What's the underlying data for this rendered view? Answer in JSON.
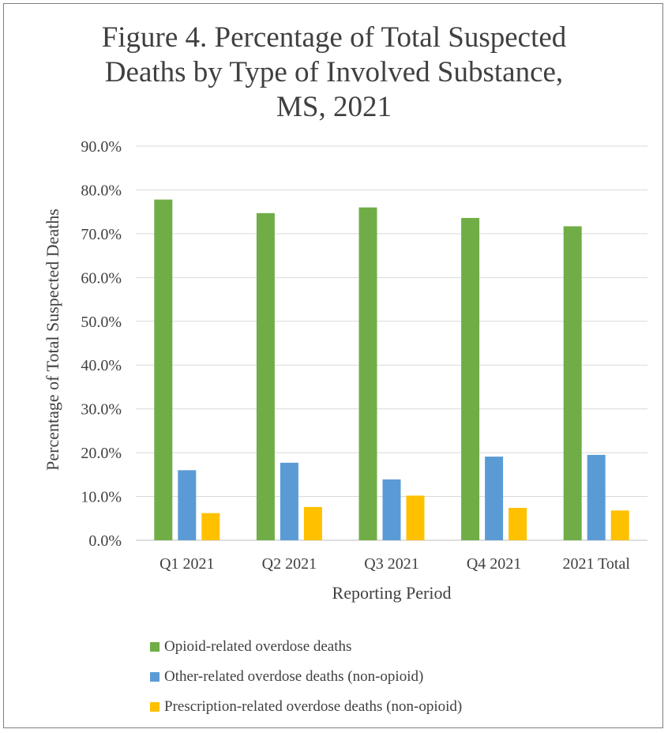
{
  "chart_data": {
    "type": "bar",
    "title_lines": [
      "Figure 4. Percentage of Total Suspected",
      "Deaths by Type of Involved Substance,",
      "MS, 2021"
    ],
    "xlabel": "Reporting Period",
    "ylabel": "Percentage of Total Suspected Deaths",
    "categories": [
      "Q1 2021",
      "Q2 2021",
      "Q3 2021",
      "Q4 2021",
      "2021 Total"
    ],
    "yticks": [
      "0.0%",
      "10.0%",
      "20.0%",
      "30.0%",
      "40.0%",
      "50.0%",
      "60.0%",
      "70.0%",
      "80.0%",
      "90.0%"
    ],
    "ylim": [
      0,
      90
    ],
    "grid": true,
    "legend_position": "bottom",
    "series": [
      {
        "name": "Opioid-related overdose deaths",
        "color": "#70ad47",
        "values": [
          77.8,
          74.7,
          76.0,
          73.6,
          71.7
        ]
      },
      {
        "name": "Other-related overdose deaths (non-opioid)",
        "color": "#5b9bd5",
        "values": [
          16.0,
          17.7,
          13.9,
          19.1,
          19.5
        ]
      },
      {
        "name": "Prescription-related overdose deaths (non-opioid)",
        "color": "#ffc000",
        "values": [
          6.2,
          7.6,
          10.2,
          7.4,
          6.8
        ]
      }
    ]
  }
}
